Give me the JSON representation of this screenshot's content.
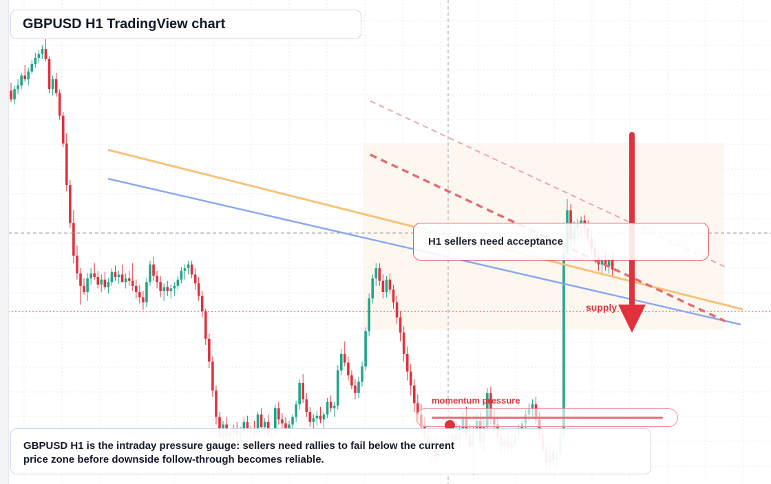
{
  "title": "GBPUSD H1 TradingView chart",
  "callout": "H1 sellers need acceptance",
  "supply_label": "supply",
  "gauge": {
    "label": "momentum pressure",
    "level": 0.08
  },
  "note": "GBPUSD H1 is the intraday pressure gauge: sellers need rallies to fail below the current price zone before downside follow-through becomes reliable.",
  "colors": {
    "up": "#22a58c",
    "down": "#e0323c",
    "accent": "#e0323c",
    "blue_trendline": "#8aa8f0",
    "orange_trendline": "#f7c27a",
    "red_channel": "#e36b6e",
    "supply_zone": "#fdf3ea"
  },
  "chart_data": {
    "type": "candlestick",
    "title": "GBPUSD H1 TradingView chart",
    "symbol": "GBPUSD",
    "timeframe": "H1",
    "grid": true,
    "candles": [
      [
        1.2735,
        1.2741,
        1.2726,
        1.2728
      ],
      [
        1.2728,
        1.2739,
        1.2724,
        1.2736
      ],
      [
        1.2736,
        1.2744,
        1.2732,
        1.2739
      ],
      [
        1.2739,
        1.2749,
        1.2736,
        1.2747
      ],
      [
        1.2747,
        1.2755,
        1.2742,
        1.2744
      ],
      [
        1.2744,
        1.2753,
        1.2739,
        1.275
      ],
      [
        1.275,
        1.2759,
        1.2748,
        1.2756
      ],
      [
        1.2756,
        1.2765,
        1.2753,
        1.2761
      ],
      [
        1.2761,
        1.2767,
        1.2757,
        1.2764
      ],
      [
        1.2764,
        1.2771,
        1.276,
        1.2768
      ],
      [
        1.2768,
        1.2776,
        1.2758,
        1.276
      ],
      [
        1.276,
        1.2762,
        1.2733,
        1.2736
      ],
      [
        1.2736,
        1.2747,
        1.2731,
        1.2744
      ],
      [
        1.2744,
        1.2749,
        1.273,
        1.2733
      ],
      [
        1.2733,
        1.2736,
        1.2712,
        1.2715
      ],
      [
        1.2715,
        1.2718,
        1.269,
        1.2693
      ],
      [
        1.2693,
        1.2701,
        1.2655,
        1.266
      ],
      [
        1.266,
        1.2664,
        1.2626,
        1.263
      ],
      [
        1.263,
        1.264,
        1.2598,
        1.2604
      ],
      [
        1.2604,
        1.2612,
        1.2585,
        1.259
      ],
      [
        1.259,
        1.2594,
        1.2565,
        1.258
      ],
      [
        1.258,
        1.2586,
        1.2573,
        1.2575
      ],
      [
        1.2575,
        1.259,
        1.2568,
        1.2586
      ],
      [
        1.2586,
        1.2594,
        1.2581,
        1.259
      ],
      [
        1.259,
        1.2598,
        1.2585,
        1.2587
      ],
      [
        1.2587,
        1.2592,
        1.2578,
        1.2581
      ],
      [
        1.2581,
        1.2589,
        1.2575,
        1.2585
      ],
      [
        1.2585,
        1.2591,
        1.2577,
        1.2579
      ],
      [
        1.2579,
        1.2586,
        1.2574,
        1.2583
      ],
      [
        1.2583,
        1.2594,
        1.258,
        1.2591
      ],
      [
        1.2591,
        1.2596,
        1.2584,
        1.2587
      ],
      [
        1.2587,
        1.2592,
        1.2582,
        1.2589
      ],
      [
        1.2589,
        1.2597,
        1.2585,
        1.2583
      ],
      [
        1.2583,
        1.259,
        1.2578,
        1.2586
      ],
      [
        1.2586,
        1.2592,
        1.258,
        1.2584
      ],
      [
        1.2584,
        1.2598,
        1.2576,
        1.258
      ],
      [
        1.258,
        1.2585,
        1.257,
        1.2575
      ],
      [
        1.2575,
        1.2581,
        1.2566,
        1.2571
      ],
      [
        1.2571,
        1.2576,
        1.2561,
        1.2567
      ],
      [
        1.2567,
        1.2586,
        1.2563,
        1.2583
      ],
      [
        1.2583,
        1.26,
        1.258,
        1.2597
      ],
      [
        1.2597,
        1.2603,
        1.2584,
        1.2588
      ],
      [
        1.2588,
        1.2592,
        1.2578,
        1.2583
      ],
      [
        1.2583,
        1.2588,
        1.2571,
        1.2576
      ],
      [
        1.2576,
        1.2582,
        1.2568,
        1.2579
      ],
      [
        1.2579,
        1.2584,
        1.2572,
        1.2576
      ],
      [
        1.2576,
        1.2581,
        1.257,
        1.2578
      ],
      [
        1.2578,
        1.2583,
        1.2572,
        1.258
      ],
      [
        1.258,
        1.2588,
        1.2577,
        1.2585
      ],
      [
        1.2585,
        1.2595,
        1.2582,
        1.2592
      ],
      [
        1.2592,
        1.2597,
        1.2585,
        1.2594
      ],
      [
        1.2594,
        1.26,
        1.2589,
        1.2597
      ],
      [
        1.2597,
        1.26,
        1.2586,
        1.2589
      ],
      [
        1.2589,
        1.2594,
        1.2577,
        1.2582
      ],
      [
        1.2582,
        1.2587,
        1.2568,
        1.2572
      ],
      [
        1.2572,
        1.2576,
        1.2555,
        1.256
      ],
      [
        1.256,
        1.2562,
        1.2533,
        1.2538
      ],
      [
        1.2538,
        1.2542,
        1.2515,
        1.252
      ],
      [
        1.252,
        1.2524,
        1.2492,
        1.2497
      ],
      [
        1.2497,
        1.2501,
        1.247,
        1.2476
      ],
      [
        1.2476,
        1.248,
        1.2456,
        1.246
      ],
      [
        1.246,
        1.2473,
        1.2454,
        1.247
      ],
      [
        1.247,
        1.2476,
        1.2457,
        1.2461
      ],
      [
        1.2461,
        1.2467,
        1.2452,
        1.2464
      ],
      [
        1.2464,
        1.247,
        1.2457,
        1.2467
      ],
      [
        1.2467,
        1.2472,
        1.2459,
        1.2462
      ],
      [
        1.2462,
        1.2468,
        1.2452,
        1.2465
      ],
      [
        1.2465,
        1.2476,
        1.246,
        1.2472
      ],
      [
        1.2472,
        1.2477,
        1.2462,
        1.2464
      ],
      [
        1.2464,
        1.2469,
        1.2458,
        1.2466
      ],
      [
        1.2466,
        1.2473,
        1.246,
        1.2463
      ],
      [
        1.2463,
        1.248,
        1.2459,
        1.2478
      ],
      [
        1.2478,
        1.2483,
        1.2466,
        1.2468
      ],
      [
        1.2468,
        1.2475,
        1.2462,
        1.2472
      ],
      [
        1.2472,
        1.2478,
        1.246,
        1.2462
      ],
      [
        1.2462,
        1.2467,
        1.2455,
        1.2463
      ],
      [
        1.2463,
        1.2486,
        1.2461,
        1.2483
      ],
      [
        1.2483,
        1.2488,
        1.247,
        1.2474
      ],
      [
        1.2474,
        1.2479,
        1.2466,
        1.2471
      ],
      [
        1.2471,
        1.2476,
        1.2462,
        1.2467
      ],
      [
        1.2467,
        1.2473,
        1.246,
        1.247
      ],
      [
        1.247,
        1.2478,
        1.2465,
        1.2476
      ],
      [
        1.2476,
        1.2489,
        1.2472,
        1.2486
      ],
      [
        1.2486,
        1.2506,
        1.2482,
        1.2503
      ],
      [
        1.2503,
        1.251,
        1.2487,
        1.249
      ],
      [
        1.249,
        1.2495,
        1.2476,
        1.248
      ],
      [
        1.248,
        1.2484,
        1.2468,
        1.2472
      ],
      [
        1.2472,
        1.2478,
        1.2463,
        1.2475
      ],
      [
        1.2475,
        1.2481,
        1.2469,
        1.2477
      ],
      [
        1.2477,
        1.2484,
        1.2471,
        1.2474
      ],
      [
        1.2474,
        1.248,
        1.2464,
        1.2478
      ],
      [
        1.2478,
        1.2491,
        1.2475,
        1.2488
      ],
      [
        1.2488,
        1.2493,
        1.248,
        1.2483
      ],
      [
        1.2483,
        1.2488,
        1.2476,
        1.2485
      ],
      [
        1.2485,
        1.2517,
        1.2482,
        1.2513
      ],
      [
        1.2513,
        1.253,
        1.2509,
        1.2526
      ],
      [
        1.2526,
        1.2536,
        1.2516,
        1.2519
      ],
      [
        1.2519,
        1.2524,
        1.2505,
        1.2509
      ],
      [
        1.2509,
        1.2513,
        1.2498,
        1.2501
      ],
      [
        1.2501,
        1.2506,
        1.249,
        1.2495
      ],
      [
        1.2495,
        1.2508,
        1.2491,
        1.2504
      ],
      [
        1.2504,
        1.252,
        1.25,
        1.2516
      ],
      [
        1.2516,
        1.2547,
        1.2513,
        1.2544
      ],
      [
        1.2544,
        1.2574,
        1.254,
        1.257
      ],
      [
        1.257,
        1.2589,
        1.2566,
        1.2586
      ],
      [
        1.2586,
        1.2598,
        1.258,
        1.2594
      ],
      [
        1.2594,
        1.2598,
        1.258,
        1.2584
      ],
      [
        1.2584,
        1.2589,
        1.257,
        1.2575
      ],
      [
        1.2575,
        1.2588,
        1.2571,
        1.2585
      ],
      [
        1.2585,
        1.259,
        1.2574,
        1.2577
      ],
      [
        1.2577,
        1.2581,
        1.2562,
        1.2567
      ],
      [
        1.2567,
        1.2572,
        1.255,
        1.2555
      ],
      [
        1.2555,
        1.256,
        1.2536,
        1.2543
      ],
      [
        1.2543,
        1.2548,
        1.252,
        1.2526
      ],
      [
        1.2526,
        1.2532,
        1.2505,
        1.2512
      ],
      [
        1.2512,
        1.2518,
        1.2493,
        1.2501
      ],
      [
        1.2501,
        1.2506,
        1.248,
        1.2487
      ],
      [
        1.2487,
        1.2494,
        1.2473,
        1.2478
      ],
      [
        1.2478,
        1.2486,
        1.2466,
        1.2469
      ],
      [
        1.2469,
        1.2476,
        1.2454,
        1.246
      ],
      [
        1.246,
        1.2467,
        1.2447,
        1.2452
      ],
      [
        1.2452,
        1.2461,
        1.244,
        1.2456
      ],
      [
        1.2456,
        1.2462,
        1.2441,
        1.2445
      ],
      [
        1.2445,
        1.2458,
        1.2442,
        1.2454
      ],
      [
        1.2454,
        1.2459,
        1.2444,
        1.2448
      ],
      [
        1.2448,
        1.2461,
        1.2444,
        1.2457
      ],
      [
        1.2457,
        1.2462,
        1.2446,
        1.245
      ],
      [
        1.245,
        1.2466,
        1.2447,
        1.2462
      ],
      [
        1.2462,
        1.2472,
        1.2454,
        1.2458
      ],
      [
        1.2458,
        1.247,
        1.2451,
        1.2465
      ],
      [
        1.2465,
        1.248,
        1.246,
        1.2476
      ],
      [
        1.2476,
        1.2484,
        1.2458,
        1.2462
      ],
      [
        1.2462,
        1.247,
        1.2448,
        1.2453
      ],
      [
        1.2453,
        1.2469,
        1.243,
        1.2465
      ],
      [
        1.2465,
        1.2478,
        1.246,
        1.2473
      ],
      [
        1.2473,
        1.248,
        1.2452,
        1.2456
      ],
      [
        1.2456,
        1.2474,
        1.2448,
        1.2468
      ],
      [
        1.2468,
        1.2499,
        1.2464,
        1.2495
      ],
      [
        1.2495,
        1.25,
        1.247,
        1.2476
      ],
      [
        1.2476,
        1.2482,
        1.2462,
        1.247
      ],
      [
        1.247,
        1.2476,
        1.2455,
        1.246
      ],
      [
        1.246,
        1.2466,
        1.2448,
        1.2453
      ],
      [
        1.2453,
        1.246,
        1.2445,
        1.2457
      ],
      [
        1.2457,
        1.2463,
        1.2449,
        1.2452
      ],
      [
        1.2452,
        1.2458,
        1.2446,
        1.2455
      ],
      [
        1.2455,
        1.2465,
        1.2451,
        1.2462
      ],
      [
        1.2462,
        1.247,
        1.2457,
        1.2466
      ],
      [
        1.2466,
        1.2474,
        1.246,
        1.2471
      ],
      [
        1.2471,
        1.2482,
        1.2466,
        1.2478
      ],
      [
        1.2478,
        1.2487,
        1.2473,
        1.2483
      ],
      [
        1.2483,
        1.249,
        1.2476,
        1.2486
      ],
      [
        1.2486,
        1.2492,
        1.247,
        1.2474
      ],
      [
        1.2474,
        1.248,
        1.2458,
        1.2462
      ],
      [
        1.2462,
        1.2466,
        1.2445,
        1.245
      ],
      [
        1.245,
        1.2454,
        1.2434,
        1.244
      ],
      [
        1.244,
        1.2455,
        1.2436,
        1.2448
      ],
      [
        1.2448,
        1.2454,
        1.2438,
        1.2442
      ],
      [
        1.2442,
        1.245,
        1.2434,
        1.2447
      ],
      [
        1.2447,
        1.2466,
        1.2443,
        1.2462
      ],
      [
        1.2462,
        1.2612,
        1.2459,
        1.2606
      ],
      [
        1.2606,
        1.2649,
        1.26,
        1.264
      ],
      [
        1.264,
        1.2645,
        1.261,
        1.2617
      ],
      [
        1.2617,
        1.2631,
        1.2612,
        1.2626
      ],
      [
        1.2626,
        1.2633,
        1.2617,
        1.2629
      ],
      [
        1.2629,
        1.2635,
        1.262,
        1.2632
      ],
      [
        1.2632,
        1.2636,
        1.2621,
        1.2626
      ],
      [
        1.2626,
        1.2632,
        1.2614,
        1.2618
      ],
      [
        1.2618,
        1.2624,
        1.2605,
        1.261
      ],
      [
        1.261,
        1.2615,
        1.2598,
        1.2603
      ],
      [
        1.2603,
        1.2609,
        1.2592,
        1.2597
      ],
      [
        1.2597,
        1.2603,
        1.2588,
        1.26
      ],
      [
        1.26,
        1.2607,
        1.2592,
        1.2596
      ],
      [
        1.2596,
        1.2605,
        1.259,
        1.2601
      ],
      [
        1.2601,
        1.2607,
        1.2588,
        1.2593
      ]
    ]
  }
}
